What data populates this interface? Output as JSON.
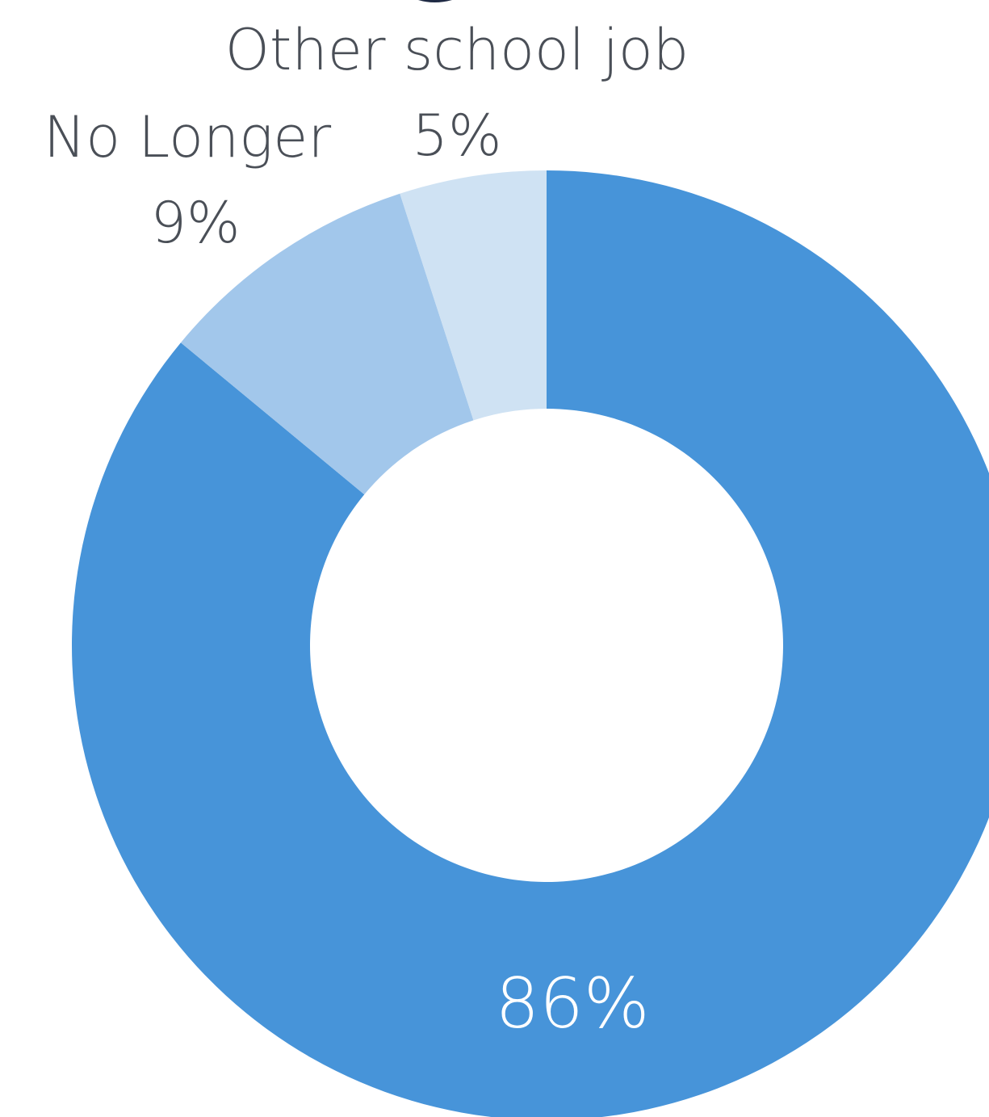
{
  "chart_data": {
    "type": "pie",
    "variant": "donut",
    "slices": [
      {
        "name": "",
        "value": 86,
        "label": "86%",
        "color": "#4794d9",
        "label_color": "#ffffff"
      },
      {
        "name": "No Longer",
        "value": 9,
        "label": "9%",
        "color": "#a2c7eb",
        "label_color": "#4a4f57"
      },
      {
        "name": "Other school job",
        "value": 5,
        "label": "5%",
        "color": "#cfe2f3",
        "label_color": "#4a4f57"
      }
    ],
    "legend": "none"
  }
}
